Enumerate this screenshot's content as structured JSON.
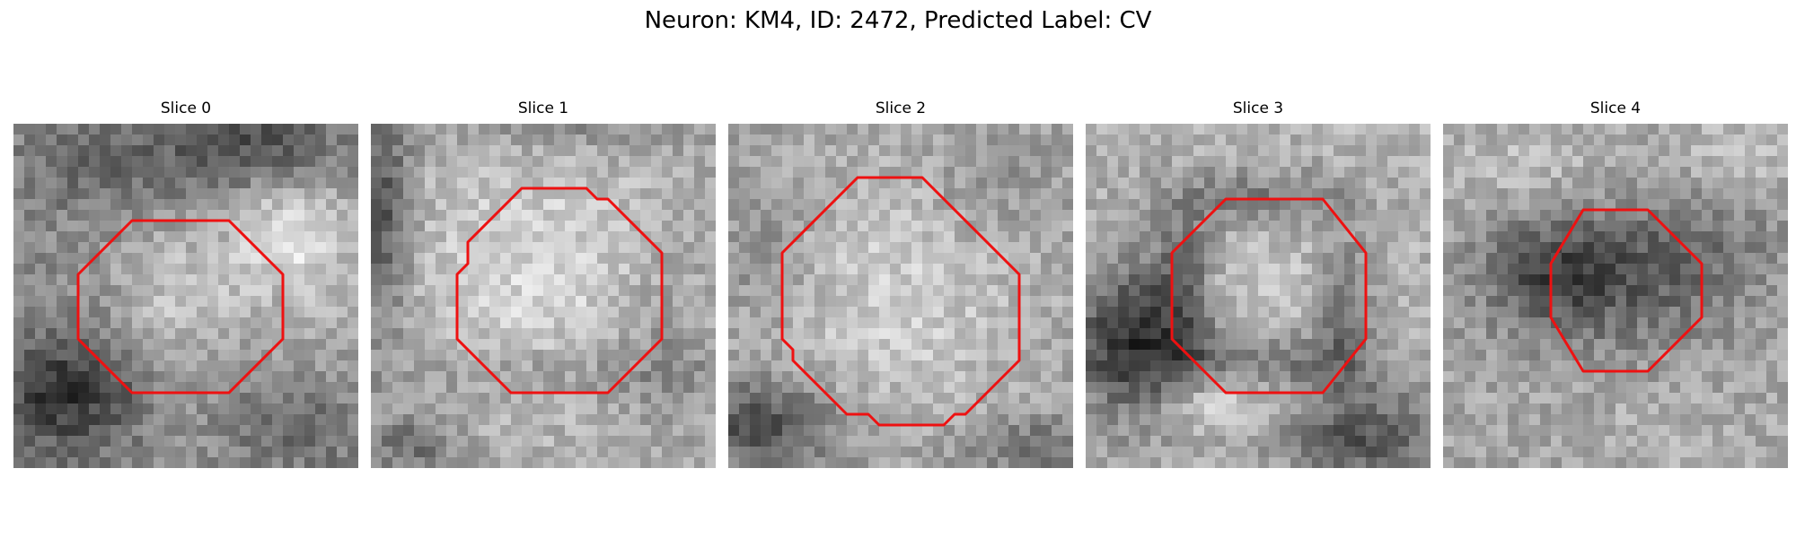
{
  "figure": {
    "title": "Neuron: KM4, ID: 2472, Predicted Label: CV",
    "contour_color": "#ee1111",
    "panels": [
      {
        "title": "Slice 0"
      },
      {
        "title": "Slice 1"
      },
      {
        "title": "Slice 2"
      },
      {
        "title": "Slice 3"
      },
      {
        "title": "Slice 4"
      }
    ]
  }
}
